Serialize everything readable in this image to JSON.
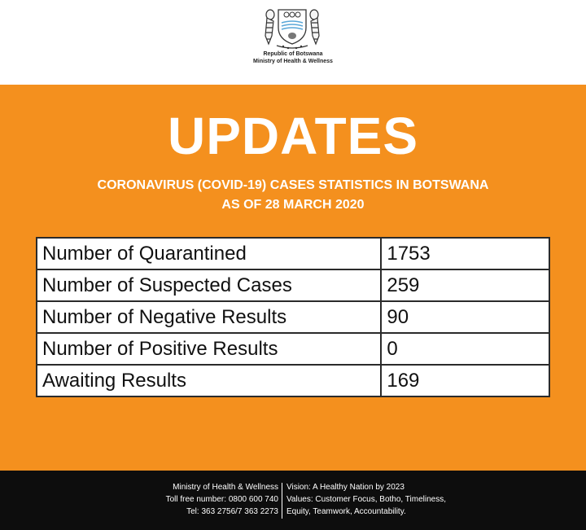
{
  "header": {
    "country": "Republic of Botswana",
    "ministry": "Ministry of Health & Wellness"
  },
  "title": "UPDATES",
  "subtitle": {
    "line1": "CORONAVIRUS (COVID-19) CASES STATISTICS IN BOTSWANA",
    "line2": "AS OF 28 MARCH 2020"
  },
  "stats": [
    {
      "label": "Number of Quarantined",
      "value": "1753"
    },
    {
      "label": "Number of Suspected Cases",
      "value": "259"
    },
    {
      "label": "Number of Negative Results",
      "value": "90"
    },
    {
      "label": "Number of Positive Results",
      "value": "0"
    },
    {
      "label": "Awaiting Results",
      "value": "169"
    }
  ],
  "footer": {
    "left": [
      "Ministry of Health & Wellness",
      "Toll free number: 0800 600 740",
      "Tel: 363 2756/7 363 2273"
    ],
    "right": [
      "Vision: A Healthy Nation by 2023",
      "Values: Customer Focus, Botho, Timeliness,",
      "Equity, Teamwork, Accountability."
    ]
  },
  "colors": {
    "accent": "#f4901e",
    "footer_bg": "#0d0d0d",
    "text_on_accent": "#ffffff"
  },
  "icons": {
    "emblem": "botswana-coat-of-arms-icon"
  }
}
